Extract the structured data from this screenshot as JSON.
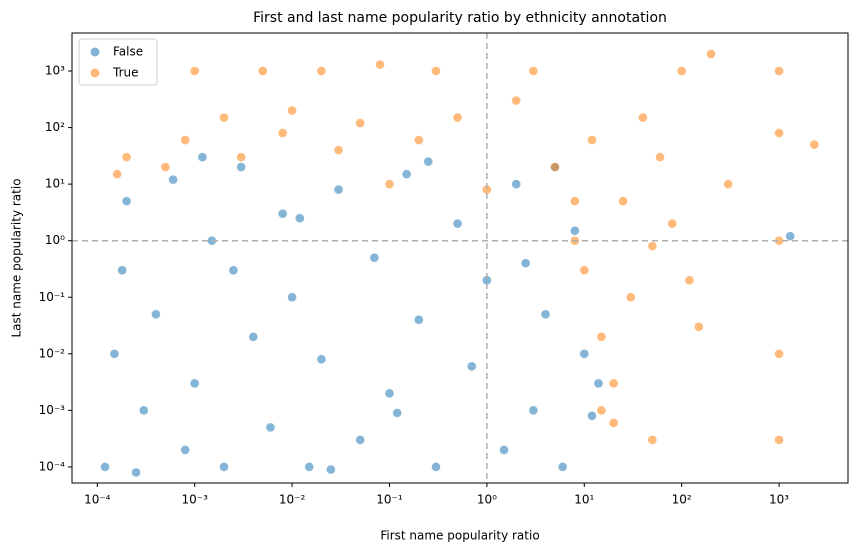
{
  "chart_data": {
    "type": "scatter",
    "title": "First and last name popularity ratio by ethnicity annotation",
    "x_label": "First name popularity ratio",
    "y_label": "Last name popularity ratio",
    "xscale": "log",
    "yscale": "log",
    "xlim": [
      5.5e-05,
      5100
    ],
    "ylim": [
      5.2e-05,
      4700
    ],
    "xticks": [
      {
        "value": 0.0001,
        "label": "10⁻⁴"
      },
      {
        "value": 0.001,
        "label": "10⁻³"
      },
      {
        "value": 0.01,
        "label": "10⁻²"
      },
      {
        "value": 0.1,
        "label": "10⁻¹"
      },
      {
        "value": 1,
        "label": "10⁰"
      },
      {
        "value": 10,
        "label": "10¹"
      },
      {
        "value": 100,
        "label": "10²"
      },
      {
        "value": 1000,
        "label": "10³"
      }
    ],
    "yticks": [
      {
        "value": 0.0001,
        "label": "10⁻⁴"
      },
      {
        "value": 0.001,
        "label": "10⁻³"
      },
      {
        "value": 0.01,
        "label": "10⁻²"
      },
      {
        "value": 0.1,
        "label": "10⁻¹"
      },
      {
        "value": 1,
        "label": "10⁰"
      },
      {
        "value": 10,
        "label": "10¹"
      },
      {
        "value": 100,
        "label": "10²"
      },
      {
        "value": 1000,
        "label": "10³"
      }
    ],
    "reference_lines": {
      "x": 1,
      "y": 1
    },
    "legend_position": "upper-left",
    "series": [
      {
        "name": "False",
        "color": "#1f77b4",
        "x": [
          0.00012,
          0.00015,
          0.00018,
          0.0002,
          0.0003,
          0.0004,
          0.0006,
          0.0008,
          0.001,
          0.0015,
          0.002,
          0.003,
          0.004,
          0.006,
          0.008,
          0.01,
          0.015,
          0.02,
          0.03,
          0.05,
          0.07,
          0.1,
          0.15,
          0.2,
          0.3,
          0.5,
          0.7,
          1,
          1.5,
          2,
          3,
          4,
          6,
          8,
          10,
          12,
          14,
          0.00025,
          0.0025,
          0.025,
          0.25,
          2.5,
          0.0012,
          0.012,
          0.12,
          5,
          1300
        ],
        "y": [
          0.0001,
          0.01,
          0.3,
          5,
          0.001,
          0.05,
          12,
          0.0002,
          0.003,
          1,
          0.0001,
          20,
          0.02,
          0.0005,
          3,
          0.1,
          0.0001,
          0.008,
          8,
          0.0003,
          0.5,
          0.002,
          15,
          0.04,
          0.0001,
          2,
          0.006,
          0.2,
          0.0002,
          10,
          0.001,
          0.05,
          0.0001,
          1.5,
          0.01,
          0.0008,
          0.003,
          8e-05,
          0.3,
          9e-05,
          25,
          0.4,
          30,
          2.5,
          0.0009,
          20,
          1.2
        ]
      },
      {
        "name": "True",
        "color": "#ff7f0e",
        "x": [
          0.0005,
          0.0008,
          0.001,
          0.002,
          0.003,
          0.005,
          0.008,
          0.01,
          0.02,
          0.03,
          0.05,
          0.08,
          0.1,
          0.2,
          0.3,
          0.5,
          1,
          2,
          3,
          5,
          8,
          10,
          12,
          15,
          20,
          25,
          30,
          40,
          50,
          60,
          80,
          100,
          150,
          200,
          300,
          1000,
          1000,
          1000,
          1000,
          1000,
          2300,
          15,
          20,
          50,
          120,
          8,
          0.0002,
          0.00016
        ],
        "y": [
          20,
          60,
          1000,
          150,
          30,
          1000,
          80,
          200,
          1000,
          40,
          120,
          1300,
          10,
          60,
          1000,
          150,
          8,
          300,
          1000,
          20,
          1,
          0.3,
          60,
          0.02,
          0.003,
          5,
          0.1,
          150,
          0.0003,
          30,
          2,
          1000,
          0.03,
          2000,
          10,
          1000,
          0.0003,
          0.01,
          1,
          80,
          50,
          0.001,
          0.0006,
          0.8,
          0.2,
          5,
          30,
          15
        ]
      }
    ]
  }
}
